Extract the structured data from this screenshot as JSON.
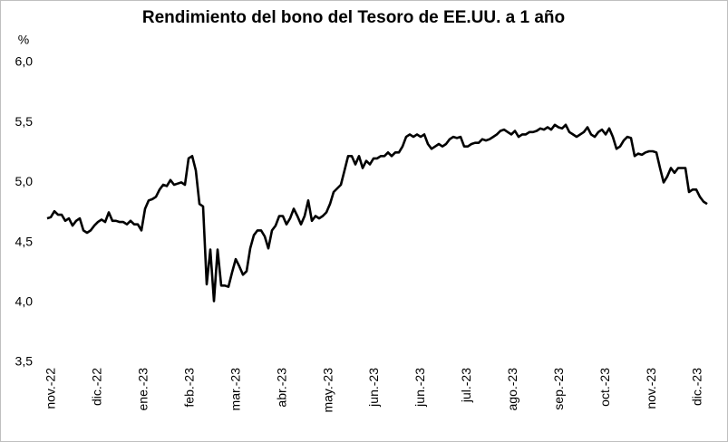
{
  "chart_data": {
    "type": "line",
    "title": "Rendimiento del bono del Tesoro de EE.UU. a 1 año",
    "y_label": "%",
    "color": "#000000",
    "ylim": [
      3.5,
      6.0
    ],
    "yticks": [
      {
        "value": 3.5,
        "label": "3,5"
      },
      {
        "value": 4.0,
        "label": "4,0"
      },
      {
        "value": 4.5,
        "label": "4,5"
      },
      {
        "value": 5.0,
        "label": "5,0"
      },
      {
        "value": 5.5,
        "label": "5,5"
      },
      {
        "value": 6.0,
        "label": "6,0"
      }
    ],
    "xticks": [
      "nov.-22",
      "dic.-22",
      "ene.-23",
      "feb.-23",
      "mar.-23",
      "abr.-23",
      "may.-23",
      "jun.-23",
      "jun.-23",
      "jul.-23",
      "ago.-23",
      "sep.-23",
      "oct.-23",
      "nov.-23",
      "dic.-23"
    ],
    "values": [
      4.7,
      4.71,
      4.76,
      4.73,
      4.73,
      4.68,
      4.7,
      4.64,
      4.68,
      4.7,
      4.6,
      4.58,
      4.6,
      4.64,
      4.67,
      4.69,
      4.67,
      4.75,
      4.68,
      4.68,
      4.67,
      4.67,
      4.65,
      4.68,
      4.65,
      4.65,
      4.6,
      4.78,
      4.85,
      4.86,
      4.88,
      4.94,
      4.98,
      4.97,
      5.02,
      4.98,
      4.99,
      5.0,
      4.98,
      5.2,
      5.22,
      5.1,
      4.82,
      4.8,
      4.15,
      4.44,
      4.01,
      4.44,
      4.14,
      4.14,
      4.13,
      4.25,
      4.36,
      4.3,
      4.23,
      4.26,
      4.45,
      4.56,
      4.6,
      4.6,
      4.55,
      4.45,
      4.6,
      4.64,
      4.72,
      4.72,
      4.65,
      4.7,
      4.78,
      4.72,
      4.65,
      4.72,
      4.85,
      4.68,
      4.72,
      4.7,
      4.72,
      4.75,
      4.82,
      4.92,
      4.95,
      4.98,
      5.1,
      5.22,
      5.22,
      5.15,
      5.22,
      5.12,
      5.18,
      5.15,
      5.2,
      5.2,
      5.22,
      5.22,
      5.25,
      5.22,
      5.25,
      5.25,
      5.3,
      5.38,
      5.4,
      5.38,
      5.4,
      5.38,
      5.4,
      5.32,
      5.28,
      5.3,
      5.32,
      5.3,
      5.32,
      5.36,
      5.38,
      5.37,
      5.38,
      5.3,
      5.3,
      5.32,
      5.33,
      5.33,
      5.36,
      5.35,
      5.36,
      5.38,
      5.4,
      5.43,
      5.44,
      5.42,
      5.4,
      5.43,
      5.38,
      5.4,
      5.4,
      5.42,
      5.42,
      5.43,
      5.45,
      5.44,
      5.46,
      5.44,
      5.48,
      5.46,
      5.45,
      5.48,
      5.42,
      5.4,
      5.38,
      5.4,
      5.42,
      5.46,
      5.4,
      5.38,
      5.42,
      5.44,
      5.4,
      5.45,
      5.38,
      5.28,
      5.3,
      5.35,
      5.38,
      5.37,
      5.22,
      5.24,
      5.23,
      5.25,
      5.26,
      5.26,
      5.25,
      5.12,
      5.0,
      5.05,
      5.12,
      5.08,
      5.12,
      5.12,
      5.12,
      4.92,
      4.94,
      4.94,
      4.88,
      4.84,
      4.82
    ]
  }
}
